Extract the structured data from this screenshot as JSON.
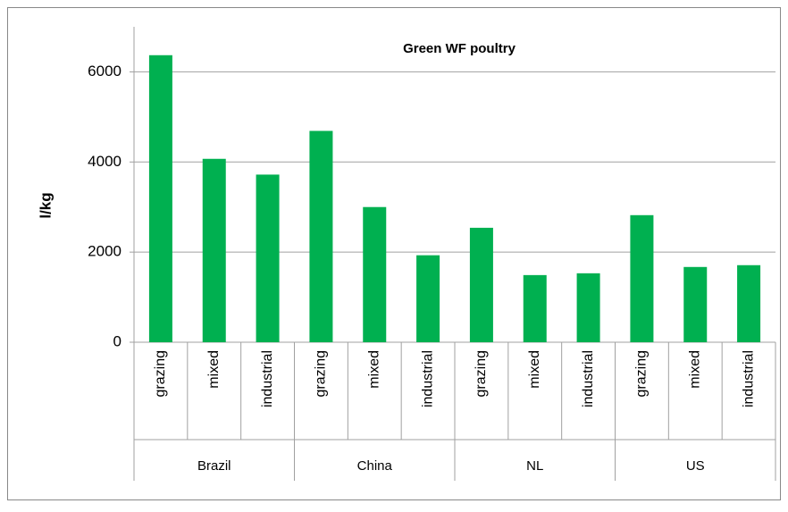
{
  "chart_data": {
    "type": "bar",
    "title": "Green WF poultry",
    "y_label": "l/kg",
    "categories": [
      "grazing",
      "mixed",
      "industrial",
      "grazing",
      "mixed",
      "industrial",
      "grazing",
      "mixed",
      "industrial",
      "grazing",
      "mixed",
      "industrial"
    ],
    "groups": [
      "Brazil",
      "China",
      "NL",
      "US"
    ],
    "values": [
      6370,
      4070,
      3720,
      4690,
      3000,
      1930,
      2540,
      1490,
      1530,
      2820,
      1670,
      1710
    ],
    "color": "#00b050",
    "ylim": [
      0,
      7000
    ],
    "yticks": [
      0,
      2000,
      4000,
      6000
    ],
    "grid": true
  }
}
